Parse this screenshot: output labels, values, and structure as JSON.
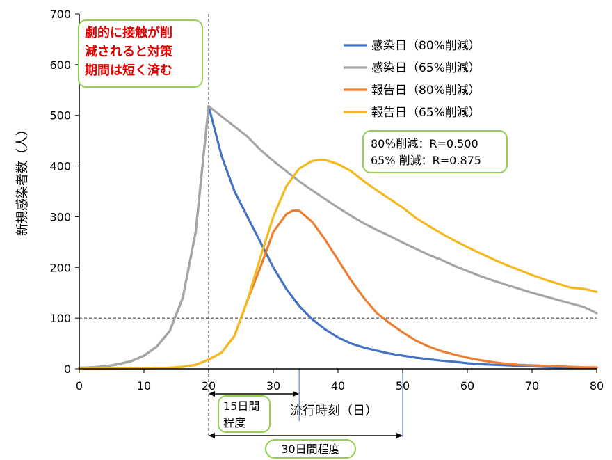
{
  "chart_data": {
    "type": "line",
    "xlabel": "流行時刻（日）",
    "ylabel": "新規感染者数（人）",
    "xlim": [
      0,
      80
    ],
    "ylim": [
      0,
      700
    ],
    "xticks": [
      0,
      10,
      20,
      30,
      40,
      50,
      60,
      70,
      80
    ],
    "yticks": [
      0,
      100,
      200,
      300,
      400,
      500,
      600,
      700
    ],
    "legend_position": "top-right",
    "grid": false,
    "series": [
      {
        "name": "感染日（80%削減）",
        "color": "#4472c4",
        "x": [
          0,
          2,
          4,
          6,
          8,
          10,
          12,
          14,
          16,
          18,
          20,
          22,
          24,
          26,
          28,
          30,
          32,
          34,
          36,
          38,
          40,
          42,
          44,
          46,
          48,
          50,
          52,
          54,
          56,
          58,
          60,
          62,
          64,
          66,
          68,
          70,
          72,
          74,
          76,
          78,
          80
        ],
        "y": [
          2,
          3,
          5,
          9,
          15,
          26,
          44,
          75,
          140,
          270,
          518,
          420,
          350,
          300,
          250,
          200,
          158,
          124,
          98,
          78,
          62,
          50,
          42,
          36,
          30,
          26,
          22,
          19,
          16,
          14,
          11,
          9,
          8,
          7,
          6,
          5,
          4,
          3,
          3,
          2,
          2
        ]
      },
      {
        "name": "感染日（65%削減）",
        "color": "#a5a5a5",
        "x": [
          0,
          2,
          4,
          6,
          8,
          10,
          12,
          14,
          16,
          18,
          20,
          22,
          24,
          26,
          28,
          30,
          32,
          34,
          36,
          38,
          40,
          42,
          44,
          46,
          48,
          50,
          52,
          54,
          56,
          58,
          60,
          62,
          64,
          66,
          68,
          70,
          72,
          74,
          76,
          78,
          80
        ],
        "y": [
          2,
          3,
          5,
          9,
          15,
          26,
          44,
          75,
          140,
          270,
          518,
          498,
          478,
          458,
          432,
          410,
          390,
          370,
          352,
          335,
          318,
          302,
          287,
          274,
          262,
          249,
          237,
          225,
          215,
          203,
          193,
          183,
          174,
          166,
          158,
          150,
          143,
          136,
          129,
          122,
          110
        ]
      },
      {
        "name": "報告日（80%削減）",
        "color": "#ed7d31",
        "x": [
          0,
          10,
          14,
          16,
          18,
          20,
          22,
          24,
          26,
          28,
          30,
          32,
          33,
          34,
          36,
          38,
          40,
          42,
          44,
          46,
          48,
          50,
          52,
          54,
          56,
          58,
          60,
          62,
          64,
          66,
          68,
          70,
          72,
          74,
          76,
          78,
          80
        ],
        "y": [
          0,
          1,
          2,
          4,
          8,
          18,
          32,
          65,
          135,
          200,
          270,
          305,
          312,
          312,
          290,
          255,
          215,
          175,
          140,
          110,
          90,
          72,
          56,
          44,
          35,
          28,
          22,
          17,
          13,
          10,
          8,
          7,
          6,
          5,
          4,
          3,
          3
        ]
      },
      {
        "name": "報告日（65%削減）",
        "color": "#f5b920",
        "x": [
          0,
          10,
          14,
          16,
          18,
          20,
          22,
          24,
          26,
          28,
          30,
          32,
          34,
          36,
          37,
          38,
          40,
          42,
          44,
          46,
          48,
          50,
          52,
          54,
          56,
          58,
          60,
          62,
          64,
          66,
          68,
          70,
          72,
          74,
          76,
          78,
          80
        ],
        "y": [
          0,
          1,
          2,
          4,
          8,
          18,
          32,
          65,
          135,
          220,
          300,
          360,
          395,
          410,
          412,
          412,
          404,
          390,
          370,
          352,
          335,
          318,
          298,
          282,
          267,
          253,
          240,
          228,
          216,
          205,
          195,
          185,
          176,
          168,
          160,
          158,
          152
        ]
      }
    ],
    "reference_lines": [
      {
        "orientation": "horizontal",
        "value": 100,
        "style": "dashed"
      },
      {
        "orientation": "vertical",
        "value": 20,
        "style": "dashed"
      }
    ],
    "markers": [
      {
        "orientation": "vertical",
        "value": 34,
        "color": "#4472c4"
      },
      {
        "orientation": "vertical",
        "value": 50,
        "color": "#4472c4"
      }
    ],
    "spans": [
      {
        "from": 20,
        "to": 34,
        "label": "15日間程度"
      },
      {
        "from": 20,
        "to": 50,
        "label": "30日間程度"
      }
    ]
  },
  "annotations": {
    "red_note": [
      "劇的に接触が削",
      "減されると対策",
      "期間は短く済む"
    ],
    "r_values": [
      "80％削減：R=0.500",
      "65% 削減：R=0.875"
    ],
    "span_15": [
      "15日間",
      "程度"
    ],
    "span_30": "30日間程度"
  }
}
